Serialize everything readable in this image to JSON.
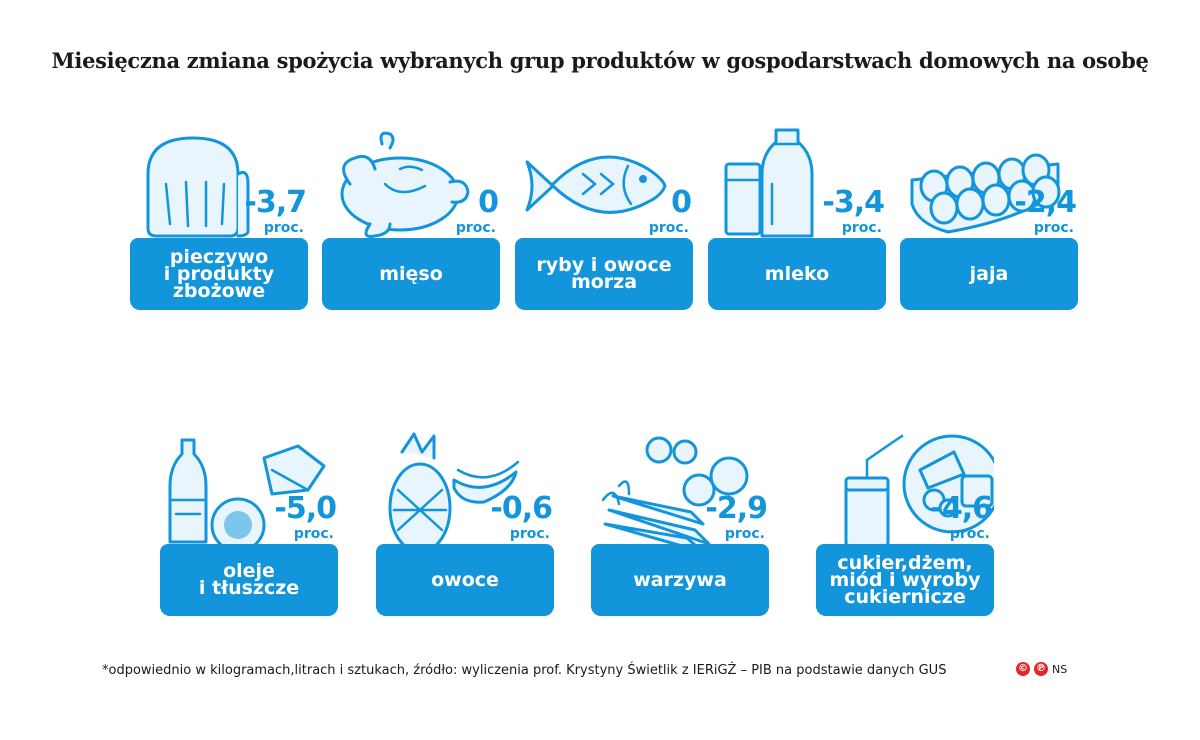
{
  "title": "Miesięczna zmiana spożycia wybranych grup produktów w gospodarstwach domowych na osobę",
  "footnote": "*odpowiednio w kilogramach,litrach i sztukach, źródło: wyliczenia prof. Krystyny Świetlik z IERiGŻ – PIB na podstawie danych GUS",
  "credit": "NS",
  "colors": {
    "accent": "#1295da",
    "icon_fill": "#e8f5fc",
    "credit_red": "#e3262a"
  },
  "chart_data": {
    "type": "table",
    "unit": "proc.",
    "items": [
      {
        "category": "pieczywo\ni produkty\nzbożowe",
        "value": -3.7,
        "display": "-3,7",
        "icon": "bread-icon"
      },
      {
        "category": "mięso",
        "value": 0,
        "display": "0",
        "icon": "chicken-icon"
      },
      {
        "category": "ryby i owoce\nmorza",
        "value": 0,
        "display": "0",
        "icon": "fish-icon"
      },
      {
        "category": "mleko",
        "value": -3.4,
        "display": "-3,4",
        "icon": "milk-icon"
      },
      {
        "category": "jaja",
        "value": -2.4,
        "display": "-2,4",
        "icon": "eggs-icon"
      },
      {
        "category": "oleje\ni tłuszcze",
        "value": -5.0,
        "display": "-5,0",
        "icon": "oil-butter-icon"
      },
      {
        "category": "owoce",
        "value": -0.6,
        "display": "-0,6",
        "icon": "fruit-icon"
      },
      {
        "category": "warzywa",
        "value": -2.9,
        "display": "-2,9",
        "icon": "vegetables-icon"
      },
      {
        "category": "cukier,dżem,\nmiód i wyroby\ncukiernicze",
        "value": -4.6,
        "display": "-4,6",
        "icon": "sweets-icon"
      }
    ]
  }
}
